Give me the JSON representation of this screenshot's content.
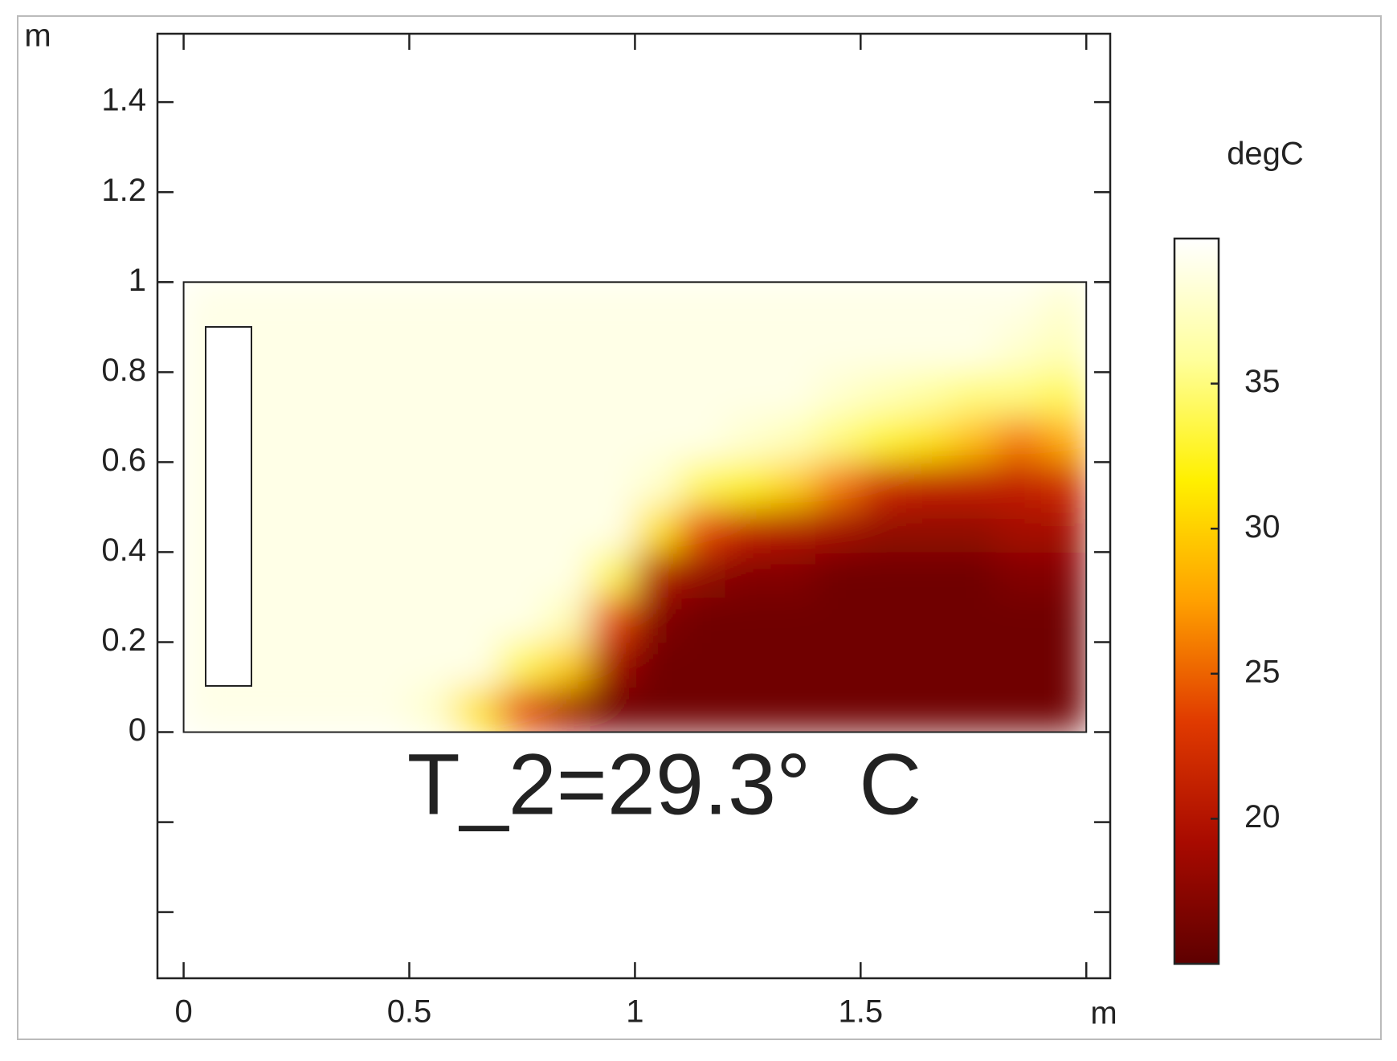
{
  "chart_data": {
    "type": "heatmap",
    "xlabel": "m",
    "ylabel": "m",
    "xlim": [
      -0.058,
      2.053
    ],
    "ylim": [
      -0.547,
      1.552
    ],
    "xticks": [
      0,
      0.5,
      1,
      1.5,
      {
        "value": 2,
        "label": null
      }
    ],
    "yticks": [
      {
        "value": -0.4,
        "label": null
      },
      {
        "value": -0.2,
        "label": null
      },
      0,
      0.2,
      0.4,
      0.6,
      0.8,
      1,
      1.2,
      1.4
    ],
    "xbins": [
      0,
      0.1,
      0.2,
      0.3,
      0.4,
      0.5,
      0.6,
      0.7,
      0.8,
      0.9,
      1,
      1.1,
      1.2,
      1.3,
      1.4,
      1.5,
      1.6,
      1.7,
      1.8,
      1.9,
      2
    ],
    "ybins": [
      0,
      0.1,
      0.2,
      0.3,
      0.4,
      0.5,
      0.6,
      0.7,
      0.8,
      0.9,
      1
    ],
    "z": [
      [
        39,
        39,
        39,
        39,
        39,
        38,
        31,
        24,
        19,
        16,
        16,
        16,
        16,
        16,
        16,
        16,
        16,
        16,
        16,
        16
      ],
      [
        39,
        39,
        39,
        39,
        39,
        39,
        39,
        34,
        30,
        19,
        16,
        16,
        16,
        16,
        16,
        16,
        16,
        16,
        16,
        16
      ],
      [
        39,
        39,
        39,
        39,
        39,
        39,
        39,
        39,
        37,
        24,
        17,
        16,
        16,
        16,
        16,
        16,
        16,
        16,
        16,
        16
      ],
      [
        39,
        39,
        39,
        39,
        39,
        39,
        39,
        39,
        39,
        34,
        20,
        18,
        17,
        17,
        16,
        16,
        16,
        16,
        17,
        17
      ],
      [
        39,
        39,
        39,
        39,
        39,
        39,
        39,
        39,
        39,
        39,
        31,
        24,
        21,
        20,
        19,
        18,
        18,
        18,
        19,
        19
      ],
      [
        39,
        39,
        39,
        39,
        39,
        39,
        39,
        39,
        39,
        39,
        38,
        34,
        32,
        30,
        26,
        22,
        21,
        21,
        21,
        22
      ],
      [
        39,
        39,
        39,
        39,
        39,
        39,
        39,
        39,
        39,
        39,
        39,
        39,
        38,
        37,
        35,
        33,
        31,
        29,
        26,
        28
      ],
      [
        39,
        39,
        39,
        39,
        39,
        39,
        39,
        39,
        39,
        39,
        39,
        39,
        39,
        39,
        38,
        37,
        36,
        35,
        35,
        34
      ],
      [
        39,
        39,
        39,
        39,
        39,
        39,
        39,
        39,
        39,
        39,
        39,
        39,
        39,
        39,
        39,
        39,
        39,
        39,
        38,
        37
      ],
      [
        39,
        39,
        39,
        39,
        39,
        39,
        39,
        39,
        39,
        39,
        39,
        39,
        39,
        39,
        39,
        39,
        39,
        39,
        39,
        38
      ]
    ],
    "colorbar_label": "degC",
    "clim": [
      15,
      40
    ],
    "cticks": [
      20,
      25,
      30,
      35
    ],
    "colormap": [
      "#5e0000",
      "#a80a00",
      "#e03a00",
      "#ffa000",
      "#fff000",
      "#ffff9c",
      "#ffffff"
    ],
    "annotation": "T_2=29.3°  C"
  }
}
